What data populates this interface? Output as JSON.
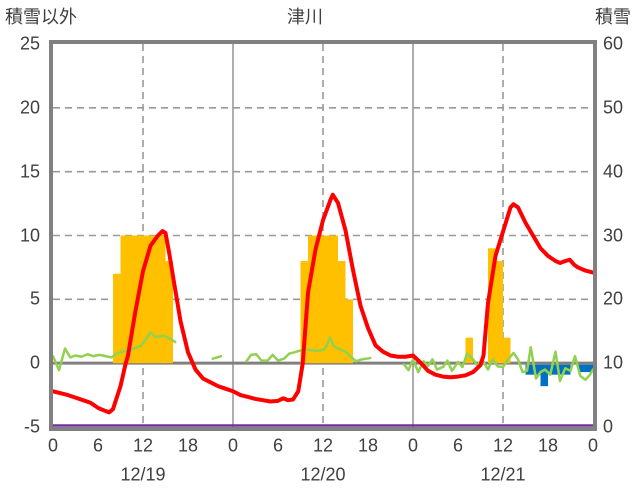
{
  "header": {
    "left_axis_title": "積雪以外",
    "chart_title": "津川",
    "right_axis_title": "積雪"
  },
  "chart_data": {
    "type": "mixed-bar-line",
    "title": "津川",
    "left_axis": {
      "title": "積雪以外",
      "min": -5,
      "max": 25,
      "ticks": [
        25,
        20,
        15,
        10,
        5,
        0,
        -5
      ]
    },
    "right_axis": {
      "title": "積雪",
      "min": 0,
      "max": 60,
      "ticks": [
        60,
        50,
        40,
        30,
        20,
        10,
        0
      ]
    },
    "x_axis": {
      "total_hours": 72,
      "tick_interval_hours": 6,
      "tick_labels": [
        "0",
        "6",
        "12",
        "18",
        "0",
        "6",
        "12",
        "18",
        "0",
        "6",
        "12",
        "18",
        "0"
      ],
      "date_labels": [
        {
          "label": "12/19",
          "center_hour": 12
        },
        {
          "label": "12/20",
          "center_hour": 36
        },
        {
          "label": "12/21",
          "center_hour": 60
        }
      ],
      "solid_gridline_hours": [
        24,
        48
      ],
      "dashed_gridline_hours": [
        12,
        36,
        60
      ]
    },
    "grid": {
      "dashed_left_values": [
        20,
        15,
        10,
        5
      ],
      "zero_line_value": 0
    },
    "colors": {
      "orange_bars": "#FFC000",
      "red_line": "#FF0000",
      "green_line": "#92D050",
      "blue_bars": "#0070C0",
      "purple_line": "#7030A0",
      "axis": "#808080",
      "gridline": "#999999",
      "text": "#404040"
    },
    "series": {
      "orange_bars": {
        "type": "bar",
        "baseline": 0,
        "bars": [
          {
            "hour": 8,
            "value": 7
          },
          {
            "hour": 9,
            "value": 10
          },
          {
            "hour": 10,
            "value": 10
          },
          {
            "hour": 11,
            "value": 10
          },
          {
            "hour": 12,
            "value": 10
          },
          {
            "hour": 13,
            "value": 10
          },
          {
            "hour": 14,
            "value": 10
          },
          {
            "hour": 15,
            "value": 8
          },
          {
            "hour": 33,
            "value": 8
          },
          {
            "hour": 34,
            "value": 10
          },
          {
            "hour": 35,
            "value": 10
          },
          {
            "hour": 36,
            "value": 10
          },
          {
            "hour": 37,
            "value": 10
          },
          {
            "hour": 38,
            "value": 8
          },
          {
            "hour": 39,
            "value": 5
          },
          {
            "hour": 55,
            "value": 2
          },
          {
            "hour": 58,
            "value": 9
          },
          {
            "hour": 59,
            "value": 8
          },
          {
            "hour": 60,
            "value": 2
          }
        ]
      },
      "blue_bars": {
        "type": "bar",
        "baseline": 0,
        "bars": [
          {
            "hour": 63,
            "value": -0.9
          },
          {
            "hour": 64,
            "value": -0.9
          },
          {
            "hour": 65,
            "value": -1.8
          },
          {
            "hour": 66,
            "value": -0.9
          },
          {
            "hour": 67,
            "value": -0.9
          },
          {
            "hour": 68,
            "value": -0.9
          },
          {
            "hour": 70,
            "value": -0.7
          },
          {
            "hour": 71,
            "value": -0.7
          }
        ]
      },
      "red_line": {
        "type": "line",
        "stroke_width": 4,
        "points": [
          [
            0,
            -2.2
          ],
          [
            1,
            -2.35
          ],
          [
            2,
            -2.5
          ],
          [
            3,
            -2.7
          ],
          [
            4,
            -2.9
          ],
          [
            5,
            -3.1
          ],
          [
            6,
            -3.5
          ],
          [
            7,
            -3.75
          ],
          [
            7.5,
            -3.85
          ],
          [
            8,
            -3.6
          ],
          [
            9,
            -1.8
          ],
          [
            9.7,
            0
          ],
          [
            10,
            0.6
          ],
          [
            11,
            4.1
          ],
          [
            12,
            7.2
          ],
          [
            13,
            9.2
          ],
          [
            14,
            10.0
          ],
          [
            14.6,
            10.35
          ],
          [
            15,
            10.2
          ],
          [
            15.5,
            8.6
          ],
          [
            16,
            6.8
          ],
          [
            17,
            3.3
          ],
          [
            18,
            0.85
          ],
          [
            19,
            -0.5
          ],
          [
            20,
            -1.2
          ],
          [
            21,
            -1.5
          ],
          [
            22,
            -1.8
          ],
          [
            23,
            -2.0
          ],
          [
            24,
            -2.2
          ],
          [
            25,
            -2.5
          ],
          [
            26,
            -2.65
          ],
          [
            27,
            -2.8
          ],
          [
            28,
            -2.9
          ],
          [
            29,
            -3.0
          ],
          [
            30,
            -2.95
          ],
          [
            30.7,
            -2.75
          ],
          [
            31.3,
            -2.9
          ],
          [
            32,
            -2.85
          ],
          [
            32.7,
            -2.2
          ],
          [
            33.3,
            0
          ],
          [
            34,
            5.5
          ],
          [
            35,
            8.9
          ],
          [
            36,
            11.2
          ],
          [
            37,
            12.8
          ],
          [
            37.3,
            13.2
          ],
          [
            38,
            12.55
          ],
          [
            39,
            10.4
          ],
          [
            40,
            7.3
          ],
          [
            41,
            4.5
          ],
          [
            42,
            2.75
          ],
          [
            43,
            1.4
          ],
          [
            44,
            0.9
          ],
          [
            45,
            0.6
          ],
          [
            46,
            0.5
          ],
          [
            47,
            0.5
          ],
          [
            48,
            0.6
          ],
          [
            49,
            0.05
          ],
          [
            50,
            -0.6
          ],
          [
            51,
            -0.9
          ],
          [
            52,
            -1.05
          ],
          [
            53,
            -1.1
          ],
          [
            54,
            -1.05
          ],
          [
            55,
            -0.95
          ],
          [
            56,
            -0.7
          ],
          [
            57,
            -0.15
          ],
          [
            57.4,
            0.6
          ],
          [
            58,
            4.7
          ],
          [
            59,
            8.4
          ],
          [
            60,
            10.3
          ],
          [
            61,
            12.2
          ],
          [
            61.4,
            12.45
          ],
          [
            62,
            12.2
          ],
          [
            63,
            11.0
          ],
          [
            64,
            10.0
          ],
          [
            65,
            9.0
          ],
          [
            66,
            8.4
          ],
          [
            67,
            8.0
          ],
          [
            67.6,
            7.85
          ],
          [
            68.3,
            8.0
          ],
          [
            68.9,
            8.1
          ],
          [
            69.5,
            7.7
          ],
          [
            70,
            7.5
          ],
          [
            71,
            7.25
          ],
          [
            72,
            7.1
          ]
        ]
      },
      "green_line": {
        "type": "line",
        "stroke_width": 2.5,
        "segments": [
          [
            [
              0,
              0.55
            ],
            [
              0.8,
              -0.55
            ],
            [
              1.6,
              1.15
            ],
            [
              2.3,
              0.45
            ],
            [
              3,
              0.6
            ],
            [
              3.8,
              0.5
            ],
            [
              4.6,
              0.7
            ],
            [
              5.4,
              0.55
            ],
            [
              6.2,
              0.65
            ],
            [
              7,
              0.55
            ],
            [
              7.8,
              0.45
            ],
            [
              8.5,
              0.75
            ],
            [
              9.3,
              0.9
            ],
            [
              10.1,
              1.0
            ],
            [
              11,
              1.2
            ],
            [
              11.8,
              1.4
            ],
            [
              12.4,
              1.9
            ],
            [
              13,
              2.4
            ],
            [
              13.6,
              2.05
            ],
            [
              14.2,
              2.1
            ],
            [
              14.8,
              2.15
            ],
            [
              15.5,
              1.95
            ],
            [
              16.3,
              1.65
            ]
          ],
          [
            [
              21.3,
              0.35
            ],
            [
              22.4,
              0.55
            ]
          ],
          [
            [
              25.8,
              0.15
            ],
            [
              26.4,
              0.65
            ],
            [
              27.1,
              0.7
            ],
            [
              27.8,
              0.2
            ],
            [
              28.6,
              0.2
            ],
            [
              29.3,
              0.65
            ],
            [
              30,
              0.2
            ],
            [
              30.8,
              0.35
            ],
            [
              31.5,
              0.75
            ],
            [
              32.2,
              0.85
            ],
            [
              33,
              1.0
            ],
            [
              34,
              1.05
            ],
            [
              35,
              0.95
            ],
            [
              36,
              1.05
            ],
            [
              36.4,
              1.25
            ],
            [
              36.9,
              2.0
            ],
            [
              37.5,
              1.3
            ],
            [
              38.2,
              1.1
            ],
            [
              39,
              0.9
            ],
            [
              39.7,
              0.5
            ],
            [
              40.4,
              0.15
            ],
            [
              41.2,
              0.3
            ],
            [
              42.3,
              0.4
            ]
          ],
          [
            [
              46.8,
              -0.1
            ],
            [
              47.4,
              -0.55
            ],
            [
              48,
              0.3
            ],
            [
              48.7,
              -0.7
            ],
            [
              49.4,
              0.15
            ],
            [
              50,
              -0.2
            ],
            [
              50.6,
              0.3
            ],
            [
              51.2,
              -0.5
            ],
            [
              52,
              -0.3
            ],
            [
              52.6,
              0.2
            ],
            [
              53.2,
              -0.6
            ],
            [
              54,
              0.1
            ],
            [
              54.6,
              -0.3
            ],
            [
              55.2,
              0.75
            ],
            [
              56,
              0.3
            ],
            [
              56.6,
              -0.2
            ],
            [
              57.2,
              0.3
            ],
            [
              58,
              -0.5
            ],
            [
              58.6,
              0.3
            ],
            [
              59.3,
              -0.25
            ],
            [
              60,
              -0.3
            ],
            [
              60.7,
              0.3
            ],
            [
              61.4,
              0.8
            ],
            [
              62,
              0.3
            ],
            [
              62.6,
              -0.7
            ],
            [
              63.2,
              -0.6
            ],
            [
              63.7,
              1.25
            ],
            [
              64.4,
              -1.2
            ],
            [
              65,
              -0.7
            ],
            [
              65.6,
              -0.5
            ],
            [
              66.3,
              -0.9
            ],
            [
              67,
              0.9
            ],
            [
              67.6,
              -1.4
            ],
            [
              68.3,
              -0.4
            ],
            [
              69,
              -0.6
            ],
            [
              69.6,
              0.55
            ],
            [
              70.3,
              -1.0
            ],
            [
              71,
              -1.3
            ],
            [
              71.6,
              -0.9
            ],
            [
              72,
              -0.5
            ]
          ]
        ]
      },
      "purple_line": {
        "type": "line",
        "stroke_width": 2.5,
        "constant_value_right_axis": 0,
        "from_hour": 0,
        "to_hour": 72
      }
    }
  }
}
